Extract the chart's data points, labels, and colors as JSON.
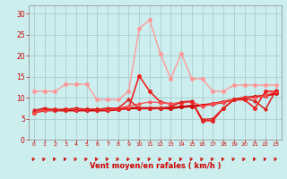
{
  "x": [
    0,
    1,
    2,
    3,
    4,
    5,
    6,
    7,
    8,
    9,
    10,
    11,
    12,
    13,
    14,
    15,
    16,
    17,
    18,
    19,
    20,
    21,
    22,
    23
  ],
  "series": [
    {
      "name": "line_dark_red_bold",
      "color": "#cc0000",
      "linewidth": 1.8,
      "markersize": 2.5,
      "values": [
        6.5,
        7.0,
        7.0,
        7.0,
        7.0,
        7.0,
        7.0,
        7.0,
        7.2,
        7.5,
        7.5,
        7.5,
        7.5,
        7.5,
        7.8,
        8.0,
        8.2,
        8.5,
        9.0,
        9.5,
        10.0,
        10.2,
        10.5,
        11.0
      ]
    },
    {
      "name": "line_red_medium",
      "color": "#ee2222",
      "linewidth": 1.2,
      "markersize": 2.5,
      "values": [
        6.5,
        7.2,
        7.2,
        7.2,
        7.2,
        7.2,
        7.2,
        7.2,
        7.2,
        7.5,
        15.2,
        11.5,
        9.0,
        8.5,
        8.8,
        9.0,
        4.5,
        4.5,
        7.5,
        9.5,
        9.5,
        7.5,
        11.5,
        11.5
      ]
    },
    {
      "name": "line_pink_light",
      "color": "#ff9999",
      "linewidth": 1.0,
      "markersize": 2.5,
      "values": [
        11.5,
        11.5,
        11.5,
        13.2,
        13.2,
        13.2,
        9.5,
        9.5,
        9.5,
        11.5,
        26.5,
        28.5,
        20.5,
        14.5,
        20.5,
        14.5,
        14.5,
        11.5,
        11.5,
        13.0,
        13.0,
        13.0,
        13.0,
        13.0
      ]
    },
    {
      "name": "line_red_thin",
      "color": "#ff5555",
      "linewidth": 1.0,
      "markersize": 2.0,
      "values": [
        6.5,
        7.0,
        7.0,
        7.2,
        7.2,
        7.2,
        7.2,
        7.2,
        7.5,
        8.0,
        8.5,
        9.0,
        8.8,
        8.5,
        8.8,
        9.0,
        8.0,
        8.5,
        9.0,
        9.5,
        10.0,
        10.0,
        10.5,
        11.5
      ]
    },
    {
      "name": "line_crimson",
      "color": "#dd2222",
      "linewidth": 1.1,
      "markersize": 2.0,
      "values": [
        7.0,
        7.5,
        7.0,
        7.2,
        7.5,
        7.2,
        7.2,
        7.5,
        7.5,
        9.5,
        7.5,
        7.5,
        7.5,
        7.8,
        9.0,
        9.2,
        4.8,
        5.0,
        7.5,
        9.5,
        9.8,
        9.2,
        7.2,
        11.8
      ]
    }
  ],
  "xlabel": "Vent moyen/en rafales ( km/h )",
  "xlim": [
    -0.5,
    23.5
  ],
  "ylim": [
    0,
    32
  ],
  "yticks": [
    0,
    5,
    10,
    15,
    20,
    25,
    30
  ],
  "xticks": [
    0,
    1,
    2,
    3,
    4,
    5,
    6,
    7,
    8,
    9,
    10,
    11,
    12,
    13,
    14,
    15,
    16,
    17,
    18,
    19,
    20,
    21,
    22,
    23
  ],
  "bg_color": "#cceeee",
  "grid_color": "#aacccc",
  "tick_color": "#cc0000",
  "label_color": "#cc0000",
  "spine_color": "#888888"
}
